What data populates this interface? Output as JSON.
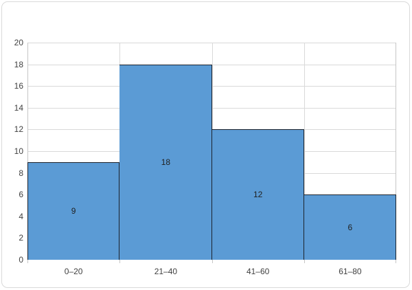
{
  "chart_data": {
    "type": "bar",
    "subtype": "histogram",
    "title": "",
    "xlabel": "",
    "ylabel": "",
    "categories": [
      "0–20",
      "21–40",
      "41–60",
      "61–80"
    ],
    "values": [
      9,
      18,
      12,
      6
    ],
    "data_labels": [
      "9",
      "18",
      "12",
      "6"
    ],
    "ylim": [
      0,
      20
    ],
    "yticks": [
      0,
      2,
      4,
      6,
      8,
      10,
      12,
      14,
      16,
      18,
      20
    ],
    "ytick_labels": [
      "0",
      "2",
      "4",
      "6",
      "8",
      "10",
      "12",
      "14",
      "16",
      "18",
      "20"
    ],
    "grid": true,
    "legend": false,
    "bars_touching": true,
    "colors": {
      "bar_fill": "#5B9BD5",
      "bar_border": "#1c222c",
      "gridline": "#D9D9D9",
      "axis_line": "#C6C6C6",
      "tick_label": "#404040",
      "data_label": "#1f1f1f",
      "chart_border": "#D9D9D9",
      "background": "#FFFFFF"
    }
  }
}
